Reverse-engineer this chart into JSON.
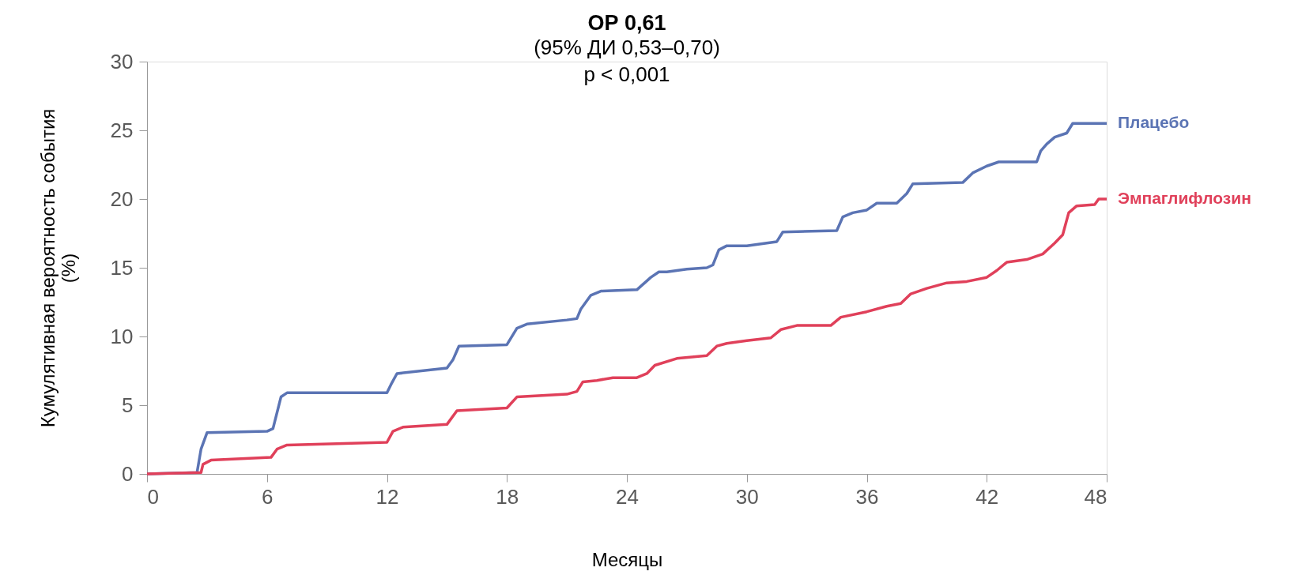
{
  "chart_data": {
    "type": "line",
    "title": "ОР 0,61",
    "subtitle": "(95% ДИ 0,53–0,70)\np < 0,001",
    "xlabel": "Месяцы",
    "ylabel": "Кумулятивная вероятность события (%)",
    "xlim": [
      0,
      48
    ],
    "xticks": [
      0,
      6,
      12,
      18,
      24,
      30,
      36,
      42,
      48
    ],
    "ylim": [
      0,
      30
    ],
    "yticks": [
      0,
      5,
      10,
      15,
      20,
      25,
      30
    ],
    "grid": false,
    "legend": false,
    "marker": "none",
    "line_style": "solid",
    "series": [
      {
        "name": "Плацебо",
        "color": "#5b74b4",
        "x": [
          0,
          2.5,
          2.7,
          3,
          6,
          6.3,
          6.7,
          7,
          12,
          12.2,
          12.5,
          15,
          15.3,
          15.6,
          18,
          18.5,
          19,
          21,
          21.5,
          21.7,
          22.2,
          22.7,
          24.5,
          25.2,
          25.6,
          26,
          27,
          28,
          28.3,
          28.6,
          29,
          30,
          31.5,
          31.8,
          34.5,
          34.8,
          35.3,
          36,
          36.5,
          37.5,
          38,
          38.3,
          40.8,
          41.3,
          42,
          42.6,
          44.5,
          44.7,
          45,
          45.4,
          46,
          46.3,
          48
        ],
        "values": [
          0,
          0.1,
          1.8,
          3.0,
          3.1,
          3.3,
          5.6,
          5.9,
          5.9,
          6.5,
          7.3,
          7.7,
          8.3,
          9.3,
          9.4,
          10.6,
          10.9,
          11.2,
          11.3,
          12.0,
          13.0,
          13.3,
          13.4,
          14.3,
          14.7,
          14.7,
          14.9,
          15.0,
          15.2,
          16.3,
          16.6,
          16.6,
          16.9,
          17.6,
          17.7,
          18.7,
          19.0,
          19.2,
          19.7,
          19.7,
          20.4,
          21.1,
          21.2,
          21.9,
          22.4,
          22.7,
          22.7,
          23.5,
          24.0,
          24.5,
          24.8,
          25.5,
          25.5
        ]
      },
      {
        "name": "Эмпаглифлозин",
        "color": "#e0405a",
        "x": [
          0,
          2.7,
          2.8,
          3.2,
          6.2,
          6.5,
          7,
          12,
          12.3,
          12.8,
          15,
          15.5,
          18,
          18.5,
          21,
          21.5,
          21.8,
          22.5,
          23.3,
          24.5,
          25,
          25.4,
          26.5,
          28,
          28.5,
          29,
          30,
          31.2,
          31.7,
          32.5,
          34.2,
          34.7,
          36,
          37,
          37.7,
          38.2,
          39,
          40,
          41,
          42,
          42.5,
          43,
          44,
          44.8,
          45.4,
          45.8,
          46.1,
          46.5,
          47.4,
          47.6,
          48
        ],
        "values": [
          0,
          0.1,
          0.7,
          1.0,
          1.2,
          1.8,
          2.1,
          2.3,
          3.1,
          3.4,
          3.6,
          4.6,
          4.8,
          5.6,
          5.8,
          6.0,
          6.7,
          6.8,
          7.0,
          7.0,
          7.3,
          7.9,
          8.4,
          8.6,
          9.3,
          9.5,
          9.7,
          9.9,
          10.5,
          10.8,
          10.8,
          11.4,
          11.8,
          12.2,
          12.4,
          13.1,
          13.5,
          13.9,
          14.0,
          14.3,
          14.8,
          15.4,
          15.6,
          16.0,
          16.8,
          17.4,
          19.0,
          19.5,
          19.6,
          20.0,
          20.0
        ]
      }
    ]
  }
}
